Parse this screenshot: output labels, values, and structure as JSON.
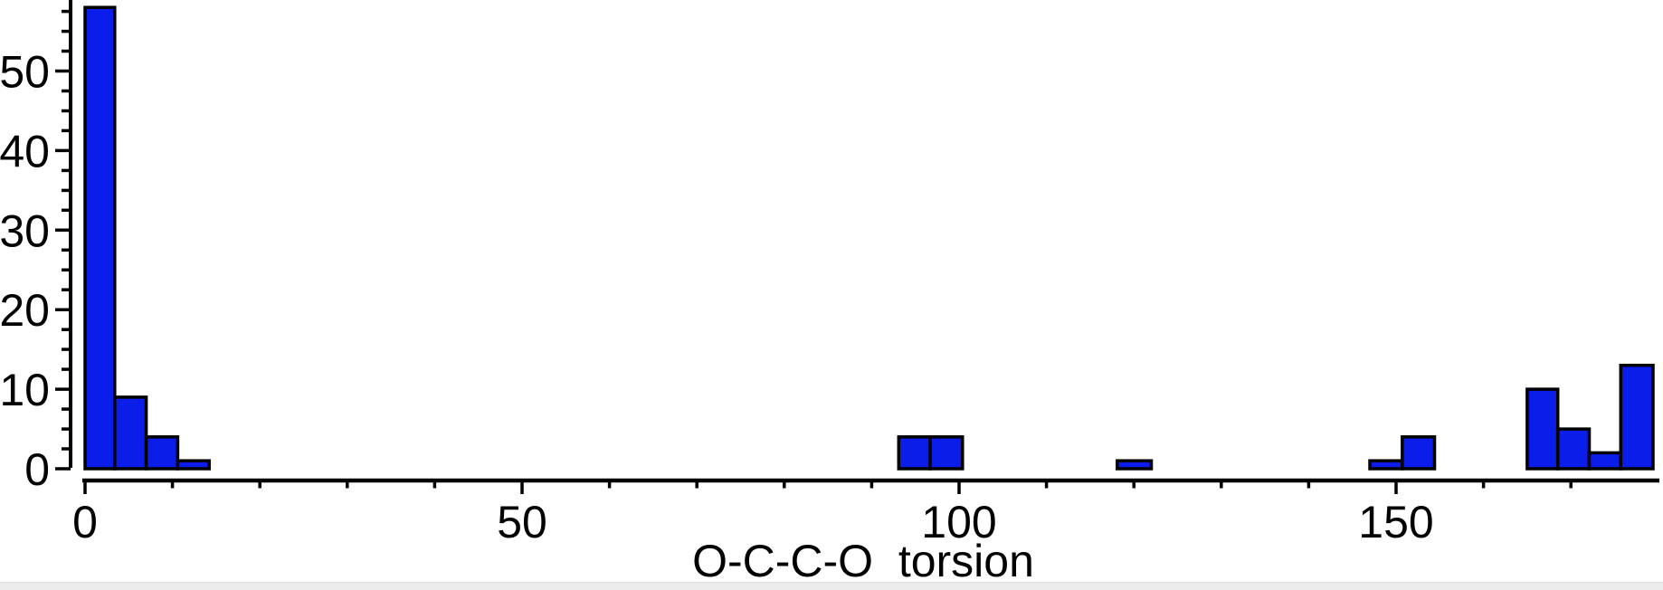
{
  "window": {
    "background_color": "#ffffff",
    "bottom_strip_color": "#ebebeb"
  },
  "chart_data": {
    "type": "bar",
    "subtype": "histogram",
    "title": "",
    "xlabel": "O-C-C-O  torsion",
    "ylabel": "",
    "grid": false,
    "legend_position": "none",
    "bar_color": "#0b1de8",
    "bar_border_color": "#000000",
    "axis_color": "#000000",
    "x_axis": {
      "range": [
        0,
        180
      ],
      "major_ticks": [
        0,
        50,
        100,
        150
      ],
      "tick_labels": [
        "0",
        "50",
        "100",
        "150"
      ],
      "minor_tick_step": 10,
      "minor_tick_max": 170
    },
    "y_axis": {
      "range": [
        0,
        58.9
      ],
      "major_ticks": [
        0,
        10,
        20,
        30,
        40,
        50
      ],
      "tick_labels": [
        "0",
        "10",
        "20",
        "30",
        "40",
        "50"
      ],
      "minor_tick_step": 2.5,
      "minor_tick_max": 57.5
    },
    "bins": [
      {
        "start": 0.0,
        "end": 3.4,
        "count": 58
      },
      {
        "start": 3.4,
        "end": 7.0,
        "count": 9
      },
      {
        "start": 7.0,
        "end": 10.6,
        "count": 4
      },
      {
        "start": 10.6,
        "end": 14.2,
        "count": 1
      },
      {
        "start": 93.1,
        "end": 96.7,
        "count": 4
      },
      {
        "start": 96.7,
        "end": 100.4,
        "count": 4
      },
      {
        "start": 118.1,
        "end": 122.0,
        "count": 1
      },
      {
        "start": 147.0,
        "end": 150.7,
        "count": 1
      },
      {
        "start": 150.7,
        "end": 154.4,
        "count": 4
      },
      {
        "start": 165.0,
        "end": 168.5,
        "count": 10
      },
      {
        "start": 168.5,
        "end": 172.1,
        "count": 5
      },
      {
        "start": 172.1,
        "end": 175.7,
        "count": 2
      },
      {
        "start": 175.7,
        "end": 179.4,
        "count": 13
      }
    ]
  }
}
